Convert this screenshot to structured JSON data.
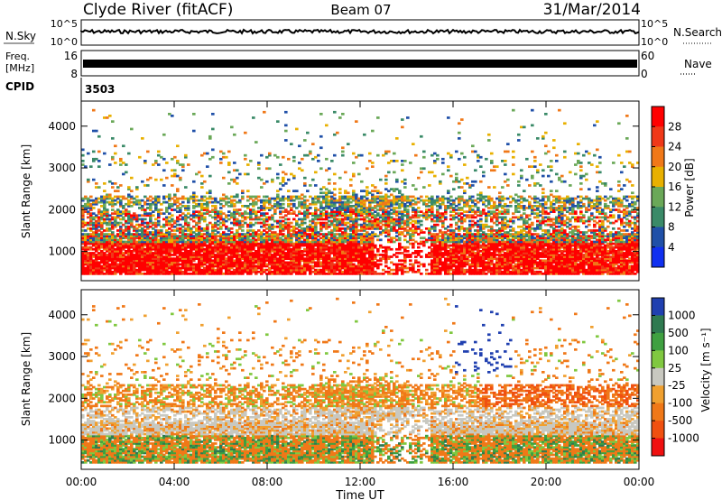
{
  "header": {
    "station": "Clyde River (fitACF)",
    "beam": "Beam 07",
    "date": "31/Mar/2014"
  },
  "summary": {
    "nsky_label": "N.Sky",
    "nsky_ticks": [
      "10^5",
      "10^0"
    ],
    "nsearch_label": "N.Search",
    "freq_label_1": "Freq.",
    "freq_label_2": "[MHz]",
    "freq_ticks": [
      "16",
      "8"
    ],
    "nave_label": "Nave",
    "nave_ticks": [
      "60",
      "0"
    ],
    "cpid_label": "CPID",
    "cpid_value": "3503",
    "nsearch_ticks": [
      "10^5",
      "10^0"
    ]
  },
  "chart_data": [
    {
      "type": "heatmap",
      "name": "power",
      "ylabel": "Slant Range [km]",
      "yticks": [
        "1000",
        "2000",
        "3000",
        "4000"
      ],
      "ylim": [
        300,
        4600
      ],
      "xlim": [
        0,
        24
      ],
      "colorbar": {
        "label": "Power [dB]",
        "ticks": [
          "4",
          "8",
          "12",
          "16",
          "20",
          "24",
          "28"
        ],
        "colors": [
          "#1030f0",
          "#2050a8",
          "#3a8a68",
          "#6aa858",
          "#e8b000",
          "#f07818",
          "#f03818",
          "#ff0000"
        ]
      }
    },
    {
      "type": "heatmap",
      "name": "velocity",
      "ylabel": "Slant Range [km]",
      "yticks": [
        "1000",
        "2000",
        "3000",
        "4000"
      ],
      "ylim": [
        300,
        4600
      ],
      "xlim": [
        0,
        24
      ],
      "colorbar": {
        "label": "Velocity [m s⁻¹]",
        "ticks": [
          "1000",
          "500",
          "100",
          "25",
          "-25",
          "-100",
          "-500",
          "-1000"
        ],
        "colors": [
          "#2040b0",
          "#2f7a50",
          "#3fa040",
          "#80c840",
          "#c8c8c0",
          "#f0a030",
          "#f07818",
          "#f05010",
          "#f01010"
        ]
      }
    }
  ],
  "xaxis": {
    "ticks": [
      "00:00",
      "04:00",
      "08:00",
      "12:00",
      "16:00",
      "20:00",
      "00:00"
    ],
    "label": "Time UT"
  }
}
